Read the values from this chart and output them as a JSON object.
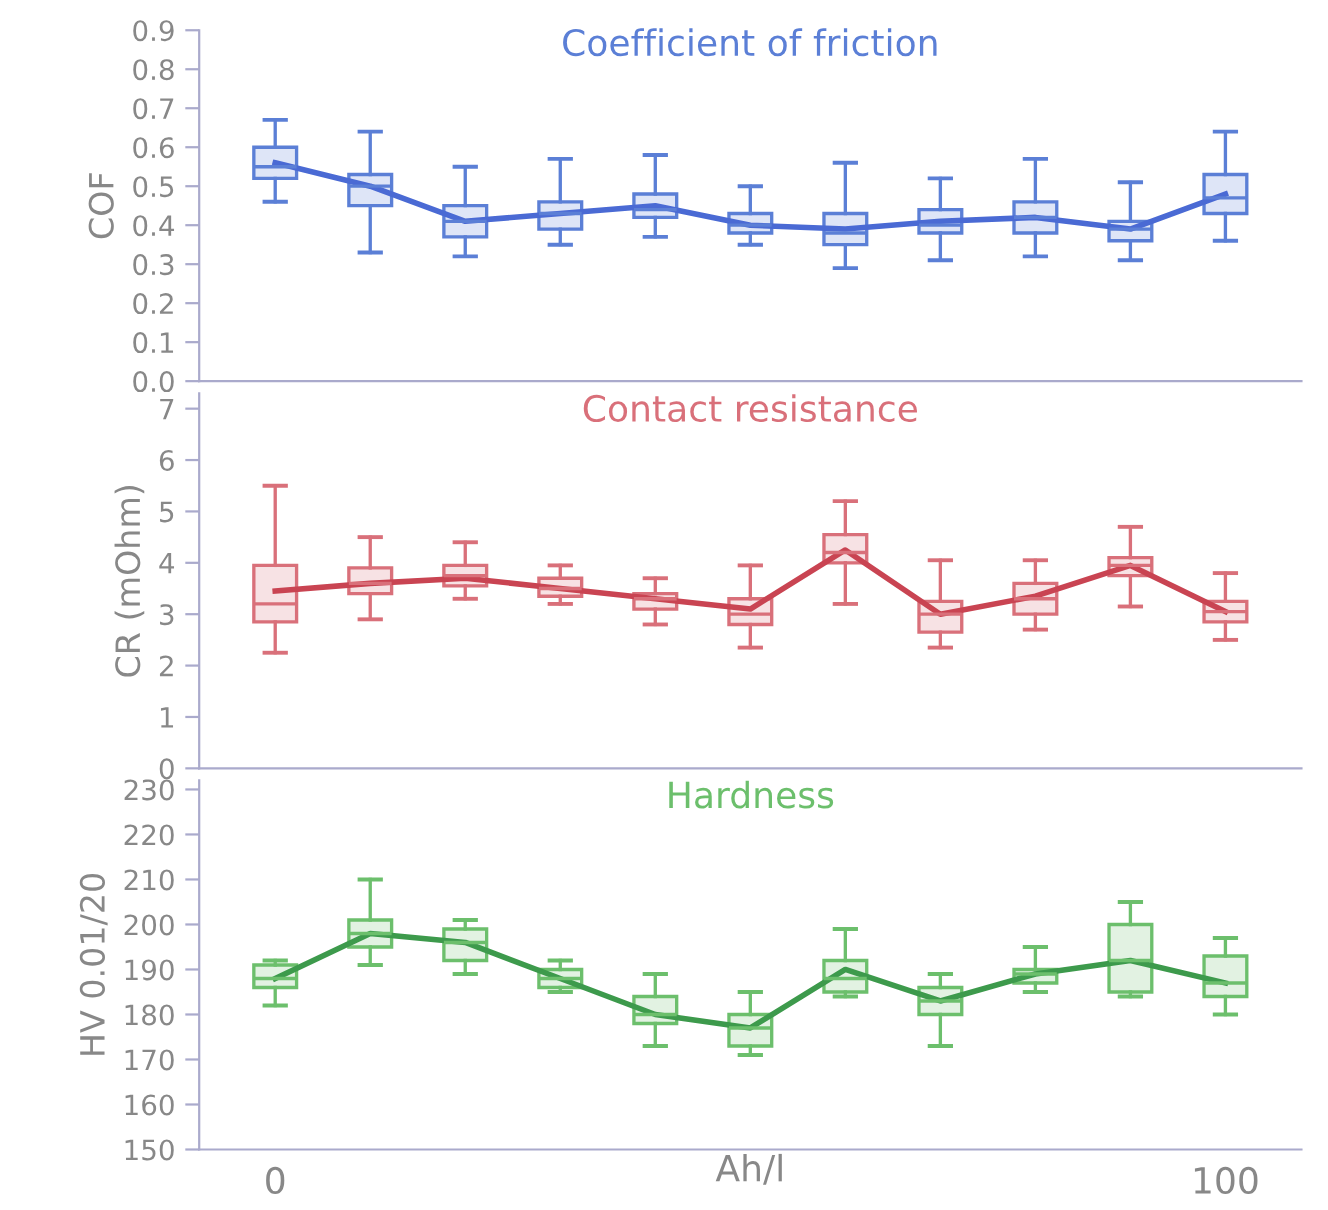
{
  "chart_data": [
    {
      "type": "box",
      "title": "Coefficient of friction",
      "ylabel": "COF",
      "categories": [
        "0",
        null,
        null,
        null,
        null,
        null,
        null,
        null,
        null,
        null,
        "100"
      ],
      "ylim": [
        0,
        0.9
      ],
      "yticks": [
        {
          "value": 0,
          "label": "0.0"
        },
        0.1,
        0.2,
        0.3,
        0.4,
        0.5,
        0.6,
        0.7,
        0.8,
        0.9
      ],
      "tick_labels": "y",
      "grid": false,
      "legend": false,
      "series": [
        {
          "color": "#5b7fd6",
          "boxes": [
            {
              "low": 0.46,
              "q1": 0.52,
              "median": 0.55,
              "q3": 0.6,
              "high": 0.67
            },
            {
              "low": 0.33,
              "q1": 0.45,
              "median": 0.5,
              "q3": 0.53,
              "high": 0.64
            },
            {
              "low": 0.32,
              "q1": 0.37,
              "median": 0.41,
              "q3": 0.45,
              "high": 0.55
            },
            {
              "low": 0.35,
              "q1": 0.39,
              "median": 0.43,
              "q3": 0.46,
              "high": 0.57
            },
            {
              "low": 0.37,
              "q1": 0.42,
              "median": 0.44,
              "q3": 0.48,
              "high": 0.58
            },
            {
              "low": 0.35,
              "q1": 0.38,
              "median": 0.4,
              "q3": 0.43,
              "high": 0.5
            },
            {
              "low": 0.29,
              "q1": 0.35,
              "median": 0.38,
              "q3": 0.43,
              "high": 0.56
            },
            {
              "low": 0.31,
              "q1": 0.38,
              "median": 0.4,
              "q3": 0.44,
              "high": 0.52
            },
            {
              "low": 0.32,
              "q1": 0.38,
              "median": 0.42,
              "q3": 0.46,
              "high": 0.57
            },
            {
              "low": 0.31,
              "q1": 0.36,
              "median": 0.39,
              "q3": 0.41,
              "high": 0.51
            },
            {
              "low": 0.36,
              "q1": 0.43,
              "median": 0.47,
              "q3": 0.53,
              "high": 0.64
            }
          ]
        },
        {
          "type": "line",
          "color": "#4a6ad4",
          "values": [
            0.56,
            0.5,
            0.41,
            0.43,
            0.45,
            0.4,
            0.39,
            0.41,
            0.42,
            0.39,
            0.48
          ]
        }
      ]
    },
    {
      "type": "box",
      "title": "Contact resistance",
      "ylabel": "CR (mOhm)",
      "categories": [
        "0",
        null,
        null,
        null,
        null,
        null,
        null,
        null,
        null,
        null,
        "100"
      ],
      "ylim": [
        0,
        7.3
      ],
      "yticks": [
        0,
        1,
        2,
        3,
        4,
        5,
        6,
        7
      ],
      "tick_labels": "y",
      "grid": false,
      "legend": false,
      "series": [
        {
          "color": "#d9707a",
          "boxes": [
            {
              "low": 2.25,
              "q1": 2.85,
              "median": 3.2,
              "q3": 3.95,
              "high": 5.5
            },
            {
              "low": 2.9,
              "q1": 3.4,
              "median": 3.6,
              "q3": 3.9,
              "high": 4.5
            },
            {
              "low": 3.3,
              "q1": 3.55,
              "median": 3.75,
              "q3": 3.95,
              "high": 4.4
            },
            {
              "low": 3.2,
              "q1": 3.35,
              "median": 3.5,
              "q3": 3.7,
              "high": 3.95
            },
            {
              "low": 2.8,
              "q1": 3.1,
              "median": 3.3,
              "q3": 3.4,
              "high": 3.7
            },
            {
              "low": 2.35,
              "q1": 2.8,
              "median": 3.0,
              "q3": 3.3,
              "high": 3.95
            },
            {
              "low": 3.2,
              "q1": 4.0,
              "median": 4.2,
              "q3": 4.55,
              "high": 5.2
            },
            {
              "low": 2.35,
              "q1": 2.65,
              "median": 3.0,
              "q3": 3.25,
              "high": 4.05
            },
            {
              "low": 2.7,
              "q1": 3.0,
              "median": 3.3,
              "q3": 3.6,
              "high": 4.05
            },
            {
              "low": 3.15,
              "q1": 3.75,
              "median": 3.95,
              "q3": 4.1,
              "high": 4.7
            },
            {
              "low": 2.5,
              "q1": 2.85,
              "median": 3.05,
              "q3": 3.25,
              "high": 3.8
            }
          ]
        },
        {
          "type": "line",
          "color": "#c94452",
          "values": [
            3.45,
            3.6,
            3.7,
            3.5,
            3.3,
            3.1,
            4.25,
            3.0,
            3.35,
            3.95,
            3.05
          ]
        }
      ]
    },
    {
      "type": "box",
      "title": "Hardness",
      "ylabel": "HV 0.01/20",
      "xlabel": "Ah/l",
      "categories": [
        "0",
        null,
        null,
        null,
        null,
        null,
        null,
        null,
        null,
        null,
        "100"
      ],
      "ylim": [
        150,
        232
      ],
      "yticks": [
        150,
        160,
        170,
        180,
        190,
        200,
        210,
        220,
        230
      ],
      "grid": false,
      "legend": false,
      "series": [
        {
          "color": "#6cbf6c",
          "boxes": [
            {
              "low": 182,
              "q1": 186,
              "median": 188,
              "q3": 191,
              "high": 192
            },
            {
              "low": 191,
              "q1": 195,
              "median": 198,
              "q3": 201,
              "high": 210
            },
            {
              "low": 189,
              "q1": 192,
              "median": 196,
              "q3": 199,
              "high": 201
            },
            {
              "low": 185,
              "q1": 186,
              "median": 188,
              "q3": 190,
              "high": 192
            },
            {
              "low": 173,
              "q1": 178,
              "median": 180,
              "q3": 184,
              "high": 189
            },
            {
              "low": 171,
              "q1": 173,
              "median": 177,
              "q3": 180,
              "high": 185
            },
            {
              "low": 184,
              "q1": 185,
              "median": 188,
              "q3": 192,
              "high": 199
            },
            {
              "low": 173,
              "q1": 180,
              "median": 183,
              "q3": 186,
              "high": 189
            },
            {
              "low": 185,
              "q1": 187,
              "median": 189,
              "q3": 190,
              "high": 195
            },
            {
              "low": 184,
              "q1": 185,
              "median": 192,
              "q3": 200,
              "high": 205
            },
            {
              "low": 180,
              "q1": 184,
              "median": 187,
              "q3": 193,
              "high": 197
            }
          ]
        },
        {
          "type": "line",
          "color": "#3d9a4c",
          "values": [
            188,
            198,
            196,
            188,
            180,
            177,
            190,
            183,
            189,
            192,
            187
          ]
        }
      ]
    }
  ]
}
